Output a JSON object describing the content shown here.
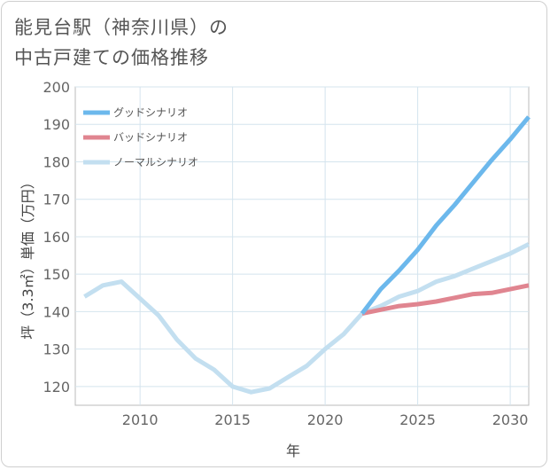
{
  "title": {
    "line1": "能見台駅（神奈川県）の",
    "line2": "中古戸建ての価格推移"
  },
  "chart_data": {
    "type": "line",
    "xlabel": "年",
    "ylabel": "坪（3.3㎡）単価（万円）",
    "xlim": [
      2006.5,
      2031
    ],
    "ylim": [
      115,
      200
    ],
    "xticks": [
      2010,
      2015,
      2020,
      2025,
      2030
    ],
    "yticks": [
      120,
      130,
      140,
      150,
      160,
      170,
      180,
      190,
      200
    ],
    "grid": true,
    "legend_position": "top-left",
    "series": [
      {
        "name": "グッドシナリオ",
        "color": "#6cb8ec",
        "x": [
          2022,
          2023,
          2024,
          2025,
          2026,
          2027,
          2028,
          2029,
          2030,
          2031
        ],
        "y": [
          139.5,
          146,
          151,
          156.5,
          163,
          168.5,
          174.5,
          180.5,
          186,
          192
        ]
      },
      {
        "name": "バッドシナリオ",
        "color": "#e08590",
        "x": [
          2022,
          2023,
          2024,
          2025,
          2026,
          2027,
          2028,
          2029,
          2030,
          2031
        ],
        "y": [
          139.5,
          140.5,
          141.5,
          142,
          142.7,
          143.7,
          144.7,
          145,
          146,
          147
        ]
      },
      {
        "name": "ノーマルシナリオ",
        "color": "#c3dff0",
        "x": [
          2007,
          2008,
          2009,
          2010,
          2011,
          2012,
          2013,
          2014,
          2015,
          2016,
          2017,
          2018,
          2019,
          2020,
          2021,
          2022,
          2023,
          2024,
          2025,
          2026,
          2027,
          2028,
          2029,
          2030,
          2031
        ],
        "y": [
          144,
          147,
          148,
          143.5,
          139,
          132.5,
          127.5,
          124.5,
          120,
          118.5,
          119.5,
          122.5,
          125.5,
          130,
          134,
          139.5,
          141.5,
          144,
          145.5,
          148,
          149.5,
          151.5,
          153.5,
          155.5,
          158
        ]
      }
    ]
  }
}
